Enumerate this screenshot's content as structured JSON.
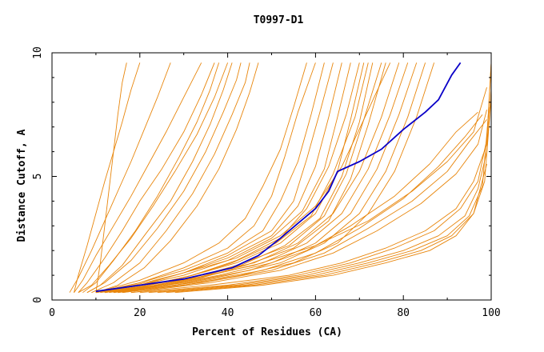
{
  "chart_data": {
    "type": "line",
    "title": "T0997-D1",
    "xlabel": "Percent of Residues (CA)",
    "ylabel": "Distance Cutoff, A",
    "xlim": [
      0,
      100
    ],
    "ylim": [
      0,
      10
    ],
    "x_ticks": [
      0,
      20,
      40,
      60,
      80,
      100
    ],
    "x_tick_labels": [
      "0",
      "20",
      "40",
      "60",
      "80",
      "100"
    ],
    "y_ticks": [
      0,
      5,
      10
    ],
    "y_tick_labels": [
      "0",
      "5",
      "10"
    ],
    "grid": false,
    "legend": "none",
    "colors": {
      "other_models": "#e8860c",
      "highlighted": "#0a00c8",
      "axes": "#000000"
    },
    "series": [
      {
        "group": "highlighted",
        "x": [
          10,
          20,
          30,
          41,
          47,
          52,
          56,
          60,
          63,
          65,
          70,
          75,
          80,
          85,
          88,
          91,
          93
        ],
        "y": [
          0.35,
          0.6,
          0.85,
          1.3,
          1.8,
          2.5,
          3.1,
          3.7,
          4.4,
          5.2,
          5.6,
          6.1,
          6.9,
          7.6,
          8.1,
          9.1,
          9.6
        ]
      },
      {
        "group": "other",
        "x": [
          10,
          11,
          12,
          13,
          14,
          15,
          16,
          17
        ],
        "y": [
          0.3,
          1.5,
          3,
          4.5,
          6,
          7.5,
          8.8,
          9.6
        ]
      },
      {
        "group": "other",
        "x": [
          5,
          6,
          8,
          10,
          12,
          14,
          16,
          18,
          20
        ],
        "y": [
          0.3,
          1,
          2.2,
          3.5,
          4.8,
          6,
          7.2,
          8.5,
          9.6
        ]
      },
      {
        "group": "other",
        "x": [
          4,
          6,
          9,
          12,
          15,
          18,
          21,
          24,
          27
        ],
        "y": [
          0.3,
          0.9,
          2,
          3.2,
          4.4,
          5.6,
          6.9,
          8.2,
          9.6
        ]
      },
      {
        "group": "other",
        "x": [
          5,
          7,
          10,
          14,
          18,
          22,
          26,
          30,
          34
        ],
        "y": [
          0.3,
          0.8,
          1.8,
          3,
          4.2,
          5.5,
          6.8,
          8.2,
          9.6
        ]
      },
      {
        "group": "other",
        "x": [
          6,
          8,
          12,
          16,
          20,
          25,
          30,
          34,
          37
        ],
        "y": [
          0.3,
          0.7,
          1.7,
          2.8,
          4,
          5.3,
          6.8,
          8.3,
          9.6
        ]
      },
      {
        "group": "other",
        "x": [
          7,
          10,
          14,
          19,
          24,
          29,
          33,
          36,
          38
        ],
        "y": [
          0.3,
          0.7,
          1.6,
          2.8,
          4.2,
          5.8,
          7.2,
          8.5,
          9.6
        ]
      },
      {
        "group": "other",
        "x": [
          6,
          9,
          13,
          18,
          23,
          28,
          33,
          37,
          40
        ],
        "y": [
          0.3,
          0.6,
          1.4,
          2.5,
          3.8,
          5.2,
          6.7,
          8.2,
          9.6
        ]
      },
      {
        "group": "other",
        "x": [
          8,
          11,
          16,
          21,
          27,
          32,
          36,
          39,
          41
        ],
        "y": [
          0.3,
          0.6,
          1.4,
          2.6,
          4,
          5.6,
          7.1,
          8.5,
          9.6
        ]
      },
      {
        "group": "other",
        "x": [
          8,
          12,
          18,
          24,
          30,
          35,
          39,
          42,
          43
        ],
        "y": [
          0.3,
          0.7,
          1.6,
          2.9,
          4.4,
          6,
          7.6,
          8.9,
          9.6
        ]
      },
      {
        "group": "other",
        "x": [
          9,
          14,
          20,
          26,
          32,
          37,
          41,
          44,
          45
        ],
        "y": [
          0.3,
          0.7,
          1.5,
          2.8,
          4.3,
          5.9,
          7.5,
          8.8,
          9.6
        ]
      },
      {
        "group": "other",
        "x": [
          10,
          15,
          21,
          27,
          33,
          38,
          42,
          45,
          47
        ],
        "y": [
          0.3,
          0.6,
          1.3,
          2.4,
          3.8,
          5.3,
          6.9,
          8.4,
          9.6
        ]
      },
      {
        "group": "other",
        "x": [
          10,
          20,
          30,
          38,
          44,
          48,
          52,
          55,
          58
        ],
        "y": [
          0.3,
          0.8,
          1.5,
          2.3,
          3.3,
          4.6,
          6.1,
          7.8,
          9.6
        ]
      },
      {
        "group": "other",
        "x": [
          10,
          20,
          30,
          40,
          46,
          50,
          53,
          56,
          60
        ],
        "y": [
          0.3,
          0.7,
          1.3,
          2.1,
          3,
          4.2,
          5.8,
          7.6,
          9.6
        ]
      },
      {
        "group": "other",
        "x": [
          10,
          20,
          30,
          40,
          48,
          52,
          56,
          59,
          62
        ],
        "y": [
          0.3,
          0.7,
          1.2,
          1.9,
          2.8,
          4,
          5.6,
          7.5,
          9.6
        ]
      },
      {
        "group": "other",
        "x": [
          10,
          20,
          30,
          40,
          50,
          55,
          58,
          61,
          64
        ],
        "y": [
          0.3,
          0.6,
          1.1,
          1.8,
          2.8,
          4,
          5.7,
          7.6,
          9.6
        ]
      },
      {
        "group": "other",
        "x": [
          10,
          20,
          30,
          40,
          50,
          56,
          60,
          63,
          66
        ],
        "y": [
          0.3,
          0.6,
          1.1,
          1.7,
          2.6,
          3.8,
          5.4,
          7.4,
          9.6
        ]
      },
      {
        "group": "other",
        "x": [
          10,
          20,
          30,
          40,
          50,
          57,
          62,
          65,
          68
        ],
        "y": [
          0.3,
          0.6,
          1,
          1.6,
          2.5,
          3.6,
          5.3,
          7.4,
          9.6
        ]
      },
      {
        "group": "other",
        "x": [
          12,
          22,
          32,
          42,
          52,
          58,
          63,
          67,
          70
        ],
        "y": [
          0.3,
          0.6,
          1,
          1.6,
          2.5,
          3.7,
          5.4,
          7.5,
          9.6
        ]
      },
      {
        "group": "other",
        "x": [
          12,
          22,
          32,
          42,
          52,
          60,
          65,
          68,
          71
        ],
        "y": [
          0.3,
          0.6,
          1,
          1.5,
          2.3,
          3.5,
          5.2,
          7.3,
          9.6
        ]
      },
      {
        "group": "other",
        "x": [
          11,
          21,
          31,
          41,
          51,
          59,
          64,
          69,
          72
        ],
        "y": [
          0.3,
          0.55,
          0.95,
          1.5,
          2.3,
          3.4,
          5.1,
          7.4,
          9.6
        ]
      },
      {
        "group": "other",
        "x": [
          13,
          23,
          33,
          43,
          53,
          61,
          66,
          70,
          73
        ],
        "y": [
          0.3,
          0.55,
          0.9,
          1.4,
          2.2,
          3.3,
          5,
          7.2,
          9.6
        ]
      },
      {
        "group": "other",
        "x": [
          12,
          22,
          32,
          42,
          54,
          62,
          67,
          71,
          75
        ],
        "y": [
          0.3,
          0.55,
          0.9,
          1.4,
          2.2,
          3.4,
          5.1,
          7.3,
          9.6
        ]
      },
      {
        "group": "other",
        "x": [
          14,
          24,
          34,
          44,
          55,
          63,
          68,
          72,
          76
        ],
        "y": [
          0.3,
          0.55,
          0.9,
          1.4,
          2.1,
          3.2,
          4.9,
          7.1,
          9.6
        ]
      },
      {
        "group": "other",
        "x": [
          10,
          20,
          30,
          42,
          52,
          60,
          66,
          71,
          77
        ],
        "y": [
          0.3,
          0.65,
          1.1,
          1.7,
          2.6,
          3.8,
          5.4,
          7.3,
          9.6
        ]
      },
      {
        "group": "other",
        "x": [
          10,
          22,
          34,
          46,
          56,
          64,
          70,
          75,
          79
        ],
        "y": [
          0.3,
          0.6,
          1,
          1.5,
          2.3,
          3.5,
          5.2,
          7.4,
          9.6
        ]
      },
      {
        "group": "other",
        "x": [
          12,
          24,
          36,
          48,
          58,
          66,
          72,
          77,
          81
        ],
        "y": [
          0.3,
          0.6,
          1,
          1.5,
          2.3,
          3.5,
          5.3,
          7.5,
          9.6
        ]
      },
      {
        "group": "other",
        "x": [
          14,
          26,
          38,
          50,
          60,
          68,
          74,
          79,
          83
        ],
        "y": [
          0.3,
          0.6,
          1,
          1.5,
          2.3,
          3.5,
          5.3,
          7.5,
          9.6
        ]
      },
      {
        "group": "other",
        "x": [
          15,
          28,
          40,
          52,
          62,
          70,
          76,
          81,
          85
        ],
        "y": [
          0.3,
          0.6,
          1,
          1.5,
          2.3,
          3.5,
          5.2,
          7.4,
          9.6
        ]
      },
      {
        "group": "other",
        "x": [
          16,
          30,
          43,
          55,
          65,
          72,
          78,
          83,
          87
        ],
        "y": [
          0.3,
          0.6,
          1,
          1.5,
          2.3,
          3.5,
          5.2,
          7.4,
          9.6
        ]
      },
      {
        "group": "other",
        "x": [
          14,
          30,
          45,
          58,
          68,
          78,
          86,
          92,
          97
        ],
        "y": [
          0.3,
          0.7,
          1.2,
          2,
          3,
          4.2,
          5.5,
          6.8,
          7.6
        ]
      },
      {
        "group": "other",
        "x": [
          15,
          32,
          48,
          60,
          70,
          80,
          88,
          94,
          98
        ],
        "y": [
          0.3,
          0.7,
          1.2,
          1.9,
          2.9,
          4.1,
          5.4,
          6.6,
          7.5
        ]
      },
      {
        "group": "other",
        "x": [
          16,
          34,
          50,
          62,
          72,
          82,
          90,
          95,
          99
        ],
        "y": [
          0.3,
          0.7,
          1.2,
          1.9,
          2.9,
          4,
          5.2,
          6.4,
          7.3
        ]
      },
      {
        "group": "other",
        "x": [
          18,
          36,
          52,
          64,
          74,
          84,
          92,
          97,
          99
        ],
        "y": [
          0.3,
          0.7,
          1.2,
          1.9,
          2.8,
          3.9,
          5.1,
          6.3,
          7.7
        ]
      },
      {
        "group": "other",
        "x": [
          15,
          30,
          46,
          60,
          72,
          82,
          90,
          96,
          99
        ],
        "y": [
          0.3,
          0.8,
          1.4,
          2.2,
          3.2,
          4.4,
          5.6,
          6.8,
          8.6
        ]
      },
      {
        "group": "other",
        "x": [
          18,
          36,
          54,
          66,
          76,
          85,
          92,
          96,
          99,
          100
        ],
        "y": [
          0.3,
          0.6,
          1,
          1.5,
          2.1,
          2.8,
          3.7,
          4.8,
          6.3,
          9.6
        ]
      },
      {
        "group": "other",
        "x": [
          20,
          40,
          56,
          68,
          78,
          87,
          93,
          97,
          99,
          100
        ],
        "y": [
          0.3,
          0.6,
          1,
          1.5,
          2.1,
          2.8,
          3.7,
          4.8,
          6.5,
          9.6
        ]
      },
      {
        "group": "other",
        "x": [
          22,
          42,
          58,
          70,
          80,
          88,
          94,
          97,
          99,
          100
        ],
        "y": [
          0.3,
          0.6,
          1,
          1.5,
          2,
          2.6,
          3.4,
          4.5,
          6,
          8.5
        ]
      },
      {
        "group": "other",
        "x": [
          24,
          44,
          60,
          72,
          82,
          90,
          95,
          98,
          99.5
        ],
        "y": [
          0.3,
          0.6,
          1,
          1.5,
          2,
          2.6,
          3.4,
          4.6,
          7.8
        ]
      },
      {
        "group": "other",
        "x": [
          26,
          46,
          62,
          74,
          84,
          91,
          96,
          98.5,
          100
        ],
        "y": [
          0.3,
          0.6,
          1,
          1.5,
          2,
          2.6,
          3.5,
          4.8,
          8.2
        ]
      },
      {
        "group": "other",
        "x": [
          28,
          48,
          64,
          76,
          86,
          92,
          96,
          99
        ],
        "y": [
          0.3,
          0.6,
          1,
          1.5,
          2,
          2.6,
          3.5,
          5.5
        ]
      }
    ]
  }
}
